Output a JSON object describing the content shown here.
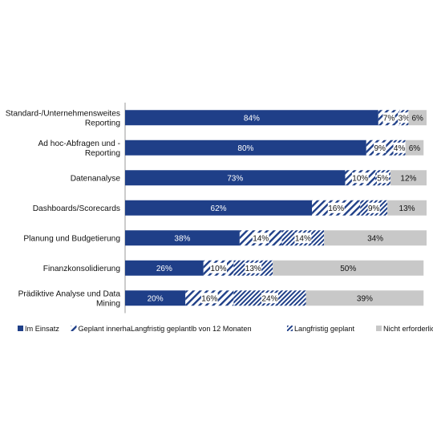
{
  "chart_data": {
    "type": "bar",
    "orientation": "horizontal",
    "stacked": true,
    "percent_stacked": true,
    "categories": [
      "Standard-/Unternehmensweites Reporting",
      "Ad hoc-Abfragen und - Reporting",
      "Datenanalyse",
      "Dashboards/Scorecards",
      "Planung und Budgetierung",
      "Finanzkonsolidierung",
      "Prädiktive Analyse und Data Mining"
    ],
    "category_label_lines": [
      [
        "Standard-/Unternehmensweites",
        "Reporting"
      ],
      [
        "Ad hoc-Abfragen und -",
        "Reporting"
      ],
      [
        "Datenanalyse"
      ],
      [
        "Dashboards/Scorecards"
      ],
      [
        "Planung und Budgetierung"
      ],
      [
        "Finanzkonsolidierung"
      ],
      [
        "Prädiktive Analyse und Data",
        "Mining"
      ]
    ],
    "series": [
      {
        "name": "Im Einsatz",
        "values": [
          84,
          80,
          73,
          62,
          38,
          26,
          20
        ],
        "labels": [
          "84%",
          "80%",
          "73%",
          "62%",
          "38%",
          "26%",
          "20%"
        ],
        "color": "#1f3f88",
        "pattern": "solid"
      },
      {
        "name": "Geplant innerhaLangfristig geplantlb von 12 Monaten",
        "values": [
          7,
          9,
          10,
          16,
          14,
          10,
          16
        ],
        "labels": [
          "7%",
          "9%",
          "10%",
          "16%",
          "14%",
          "10%",
          "16%"
        ],
        "color": "#1f3f88",
        "pattern": "diagonal-hatch"
      },
      {
        "name": "Langfristig geplant",
        "values": [
          3,
          4,
          5,
          9,
          14,
          13,
          24
        ],
        "labels": [
          "3%",
          "4%",
          "5%",
          "9%",
          "14%",
          "13%",
          "24%"
        ],
        "color": "#1f3f88",
        "pattern": "dense-diagonal-hatch"
      },
      {
        "name": "Nicht erforderlich",
        "values": [
          6,
          6,
          12,
          13,
          34,
          50,
          39
        ],
        "labels": [
          "6%",
          "6%",
          "12%",
          "13%",
          "34%",
          "50%",
          "39%"
        ],
        "color": "#c8c8c8",
        "pattern": "solid"
      }
    ],
    "xlim": [
      0,
      100
    ],
    "grid": false,
    "legend_position": "bottom"
  }
}
